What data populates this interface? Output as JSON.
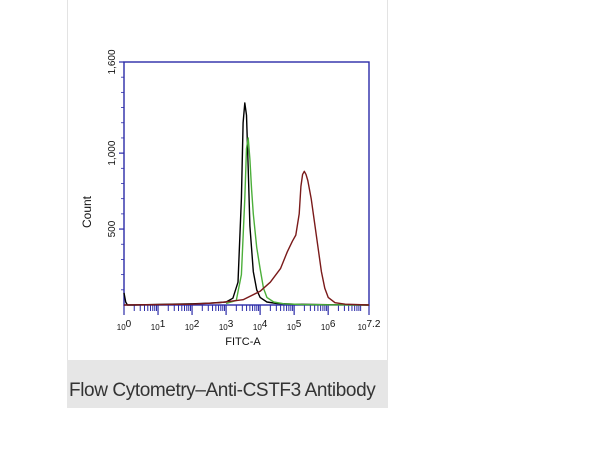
{
  "caption": "Flow Cytometry–Anti-CSTF3 Antibody",
  "colors": {
    "axis": "#2a2aa8",
    "black_trace": "#000000",
    "green_trace": "#4caf3a",
    "red_trace": "#7a1a1a",
    "caption_bg": "#e6e6e6"
  },
  "chart_data": {
    "type": "line",
    "title": "",
    "xlabel": "FITC-A",
    "ylabel": "Count",
    "x_scale": "log10",
    "xlim": [
      0,
      7.2
    ],
    "ylim": [
      0,
      1600
    ],
    "x_ticks": [
      {
        "pos": 0,
        "base": "10",
        "exp": "0"
      },
      {
        "pos": 1,
        "base": "10",
        "exp": "1"
      },
      {
        "pos": 2,
        "base": "10",
        "exp": "2"
      },
      {
        "pos": 3,
        "base": "10",
        "exp": "3"
      },
      {
        "pos": 4,
        "base": "10",
        "exp": "4"
      },
      {
        "pos": 5,
        "base": "10",
        "exp": "5"
      },
      {
        "pos": 6,
        "base": "10",
        "exp": "6"
      },
      {
        "pos": 7.2,
        "base": "10",
        "exp": "7.2"
      }
    ],
    "y_ticks": [
      {
        "value": 500,
        "label": "500"
      },
      {
        "value": 1000,
        "label": "1,000"
      },
      {
        "value": 1600,
        "label": "1,600"
      }
    ],
    "series": [
      {
        "color": "#000000",
        "x": [
          0,
          0.05,
          0.1,
          0.3,
          1,
          2,
          2.5,
          3,
          3.2,
          3.35,
          3.45,
          3.5,
          3.55,
          3.6,
          3.65,
          3.7,
          3.8,
          3.9,
          4.0,
          4.2,
          4.5,
          5,
          6,
          7.2
        ],
        "y": [
          80,
          20,
          0,
          0,
          3,
          8,
          12,
          20,
          45,
          150,
          700,
          1200,
          1330,
          1250,
          900,
          520,
          220,
          100,
          50,
          20,
          10,
          5,
          2,
          0
        ]
      },
      {
        "color": "#4caf3a",
        "x": [
          3,
          3.3,
          3.45,
          3.55,
          3.6,
          3.65,
          3.7,
          3.75,
          3.8,
          3.9,
          4.0,
          4.1,
          4.2,
          4.4,
          4.7,
          5.2,
          6,
          7.2
        ],
        "y": [
          10,
          30,
          200,
          700,
          1030,
          1100,
          960,
          760,
          600,
          380,
          240,
          110,
          50,
          20,
          8,
          3,
          1,
          0
        ]
      },
      {
        "color": "#7a1a1a",
        "x": [
          0,
          2,
          2.8,
          3.5,
          4.0,
          4.3,
          4.6,
          4.8,
          4.95,
          5.05,
          5.15,
          5.2,
          5.25,
          5.3,
          5.35,
          5.4,
          5.5,
          5.6,
          5.7,
          5.8,
          5.9,
          6.0,
          6.2,
          6.5,
          7.2
        ],
        "y": [
          0,
          5,
          15,
          35,
          90,
          150,
          240,
          350,
          420,
          460,
          600,
          780,
          860,
          880,
          860,
          820,
          700,
          540,
          380,
          220,
          110,
          50,
          15,
          5,
          0
        ]
      }
    ]
  }
}
